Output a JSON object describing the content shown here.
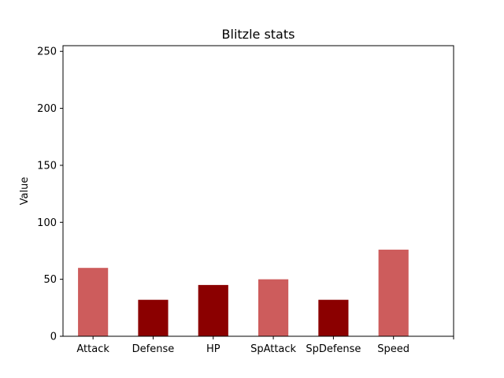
{
  "chart_data": {
    "type": "bar",
    "title": "Blitzle stats",
    "xlabel": "",
    "ylabel": "Value",
    "categories": [
      "Attack",
      "Defense",
      "HP",
      "SpAttack",
      "SpDefense",
      "Speed"
    ],
    "values": [
      60,
      32,
      45,
      50,
      32,
      76
    ],
    "colors": [
      "#cd5c5c",
      "#8b0000",
      "#8b0000",
      "#cd5c5c",
      "#8b0000",
      "#cd5c5c"
    ],
    "ylim": [
      0,
      255
    ],
    "yticks": [
      0,
      50,
      100,
      150,
      200,
      250
    ],
    "grid": false,
    "legend": "none"
  }
}
